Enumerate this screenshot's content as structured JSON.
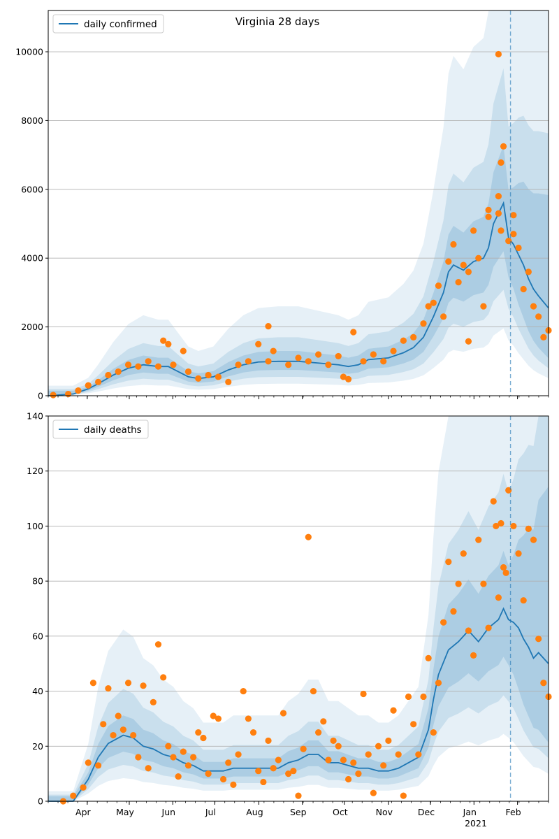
{
  "chart_data": [
    {
      "type": "line",
      "title": "Virginia 28 days",
      "legend": {
        "label": "daily confirmed",
        "placement": "upper-left"
      },
      "ylim": [
        0,
        11200
      ],
      "yticks": [
        0,
        2000,
        4000,
        6000,
        8000,
        10000
      ],
      "grid": "horizontal",
      "cutoff_x": 0.924,
      "x_month_labels": [
        "Apr",
        "May",
        "Jun",
        "Jul",
        "Aug",
        "Sep",
        "Oct",
        "Nov",
        "Dec",
        "Jan",
        "Feb"
      ],
      "x_year_label": "2021",
      "series": [
        {
          "name": "daily confirmed",
          "kind": "model",
          "points": [
            [
              0,
              0
            ],
            [
              0.05,
              50
            ],
            [
              0.08,
              200
            ],
            [
              0.1,
              350
            ],
            [
              0.13,
              600
            ],
            [
              0.16,
              800
            ],
            [
              0.19,
              900
            ],
            [
              0.22,
              850
            ],
            [
              0.24,
              850
            ],
            [
              0.26,
              700
            ],
            [
              0.28,
              550
            ],
            [
              0.3,
              500
            ],
            [
              0.33,
              550
            ],
            [
              0.36,
              750
            ],
            [
              0.39,
              900
            ],
            [
              0.42,
              980
            ],
            [
              0.46,
              1000
            ],
            [
              0.5,
              1000
            ],
            [
              0.54,
              950
            ],
            [
              0.58,
              900
            ],
            [
              0.6,
              850
            ],
            [
              0.62,
              900
            ],
            [
              0.64,
              1050
            ],
            [
              0.68,
              1100
            ],
            [
              0.71,
              1250
            ],
            [
              0.73,
              1400
            ],
            [
              0.75,
              1700
            ],
            [
              0.77,
              2300
            ],
            [
              0.79,
              3000
            ],
            [
              0.8,
              3600
            ],
            [
              0.81,
              3800
            ],
            [
              0.83,
              3650
            ],
            [
              0.85,
              3900
            ],
            [
              0.87,
              4000
            ],
            [
              0.88,
              4300
            ],
            [
              0.89,
              5000
            ],
            [
              0.9,
              5300
            ],
            [
              0.91,
              5600
            ],
            [
              0.92,
              4600
            ],
            [
              0.93,
              4400
            ],
            [
              0.94,
              4100
            ],
            [
              0.95,
              3800
            ],
            [
              0.96,
              3400
            ],
            [
              0.97,
              3100
            ],
            [
              0.98,
              2900
            ],
            [
              1.0,
              2550
            ]
          ]
        },
        {
          "name": "observed",
          "kind": "points",
          "points": [
            [
              0.01,
              20
            ],
            [
              0.04,
              50
            ],
            [
              0.06,
              150
            ],
            [
              0.08,
              300
            ],
            [
              0.1,
              400
            ],
            [
              0.12,
              600
            ],
            [
              0.14,
              700
            ],
            [
              0.16,
              900
            ],
            [
              0.18,
              850
            ],
            [
              0.2,
              1000
            ],
            [
              0.22,
              850
            ],
            [
              0.23,
              1600
            ],
            [
              0.24,
              1500
            ],
            [
              0.25,
              900
            ],
            [
              0.27,
              1300
            ],
            [
              0.28,
              700
            ],
            [
              0.3,
              500
            ],
            [
              0.32,
              600
            ],
            [
              0.34,
              550
            ],
            [
              0.36,
              400
            ],
            [
              0.38,
              900
            ],
            [
              0.4,
              1000
            ],
            [
              0.42,
              1500
            ],
            [
              0.44,
              1000
            ],
            [
              0.45,
              1300
            ],
            [
              0.44,
              2020
            ],
            [
              0.48,
              900
            ],
            [
              0.5,
              1100
            ],
            [
              0.52,
              1000
            ],
            [
              0.54,
              1200
            ],
            [
              0.56,
              900
            ],
            [
              0.58,
              1150
            ],
            [
              0.59,
              550
            ],
            [
              0.6,
              480
            ],
            [
              0.61,
              1850
            ],
            [
              0.63,
              1000
            ],
            [
              0.65,
              1200
            ],
            [
              0.67,
              1000
            ],
            [
              0.69,
              1300
            ],
            [
              0.71,
              1600
            ],
            [
              0.73,
              1700
            ],
            [
              0.75,
              2100
            ],
            [
              0.76,
              2600
            ],
            [
              0.77,
              2700
            ],
            [
              0.78,
              3200
            ],
            [
              0.79,
              2300
            ],
            [
              0.8,
              3900
            ],
            [
              0.81,
              4400
            ],
            [
              0.82,
              3300
            ],
            [
              0.83,
              3800
            ],
            [
              0.84,
              3600
            ],
            [
              0.85,
              4800
            ],
            [
              0.84,
              1580
            ],
            [
              0.86,
              4000
            ],
            [
              0.87,
              2600
            ],
            [
              0.88,
              5200
            ],
            [
              0.88,
              5400
            ],
            [
              0.9,
              5300
            ],
            [
              0.9,
              5800
            ],
            [
              0.905,
              4800
            ],
            [
              0.905,
              6780
            ],
            [
              0.91,
              7250
            ],
            [
              0.9,
              9930
            ],
            [
              0.92,
              4500
            ],
            [
              0.93,
              5250
            ],
            [
              0.93,
              4700
            ],
            [
              0.94,
              4300
            ],
            [
              0.95,
              3100
            ],
            [
              0.96,
              3600
            ],
            [
              0.97,
              2600
            ],
            [
              0.98,
              2300
            ],
            [
              0.99,
              1700
            ],
            [
              1.0,
              1900
            ]
          ]
        }
      ]
    },
    {
      "type": "line",
      "legend": {
        "label": "daily deaths",
        "placement": "upper-left"
      },
      "ylim": [
        0,
        140
      ],
      "yticks": [
        0,
        20,
        40,
        60,
        80,
        100,
        120,
        140
      ],
      "grid": "horizontal",
      "cutoff_x": 0.924,
      "x_month_labels": [
        "Apr",
        "May",
        "Jun",
        "Jul",
        "Aug",
        "Sep",
        "Oct",
        "Nov",
        "Dec",
        "Jan",
        "Feb"
      ],
      "x_year_label": "2021",
      "series": [
        {
          "name": "daily deaths",
          "kind": "model",
          "points": [
            [
              0,
              0
            ],
            [
              0.05,
              0
            ],
            [
              0.08,
              8
            ],
            [
              0.1,
              16
            ],
            [
              0.12,
              21
            ],
            [
              0.15,
              24
            ],
            [
              0.17,
              23
            ],
            [
              0.19,
              20
            ],
            [
              0.21,
              19
            ],
            [
              0.23,
              17
            ],
            [
              0.25,
              16
            ],
            [
              0.27,
              14
            ],
            [
              0.29,
              13
            ],
            [
              0.31,
              11
            ],
            [
              0.33,
              11
            ],
            [
              0.35,
              11
            ],
            [
              0.37,
              12
            ],
            [
              0.4,
              12
            ],
            [
              0.43,
              12
            ],
            [
              0.46,
              12
            ],
            [
              0.48,
              14
            ],
            [
              0.5,
              15
            ],
            [
              0.52,
              17
            ],
            [
              0.54,
              17
            ],
            [
              0.56,
              14
            ],
            [
              0.58,
              14
            ],
            [
              0.6,
              13
            ],
            [
              0.62,
              12
            ],
            [
              0.64,
              12
            ],
            [
              0.66,
              11
            ],
            [
              0.68,
              11
            ],
            [
              0.7,
              12
            ],
            [
              0.72,
              14
            ],
            [
              0.74,
              16
            ],
            [
              0.76,
              26
            ],
            [
              0.77,
              37
            ],
            [
              0.78,
              46
            ],
            [
              0.8,
              55
            ],
            [
              0.82,
              58
            ],
            [
              0.84,
              62
            ],
            [
              0.86,
              58
            ],
            [
              0.88,
              63
            ],
            [
              0.9,
              66
            ],
            [
              0.91,
              70
            ],
            [
              0.92,
              66
            ],
            [
              0.93,
              65
            ],
            [
              0.94,
              63
            ],
            [
              0.95,
              59
            ],
            [
              0.96,
              56
            ],
            [
              0.97,
              52
            ],
            [
              0.98,
              54
            ],
            [
              1.0,
              50
            ]
          ]
        },
        {
          "name": "observed",
          "kind": "points",
          "points": [
            [
              0.03,
              0
            ],
            [
              0.05,
              2
            ],
            [
              0.07,
              5
            ],
            [
              0.08,
              14
            ],
            [
              0.09,
              43
            ],
            [
              0.1,
              13
            ],
            [
              0.11,
              28
            ],
            [
              0.12,
              41
            ],
            [
              0.13,
              24
            ],
            [
              0.14,
              31
            ],
            [
              0.15,
              26
            ],
            [
              0.16,
              43
            ],
            [
              0.17,
              24
            ],
            [
              0.18,
              16
            ],
            [
              0.19,
              42
            ],
            [
              0.2,
              12
            ],
            [
              0.21,
              36
            ],
            [
              0.22,
              57
            ],
            [
              0.23,
              45
            ],
            [
              0.24,
              20
            ],
            [
              0.25,
              16
            ],
            [
              0.26,
              9
            ],
            [
              0.27,
              18
            ],
            [
              0.28,
              13
            ],
            [
              0.29,
              16
            ],
            [
              0.3,
              25
            ],
            [
              0.31,
              23
            ],
            [
              0.32,
              10
            ],
            [
              0.33,
              31
            ],
            [
              0.34,
              30
            ],
            [
              0.35,
              8
            ],
            [
              0.36,
              14
            ],
            [
              0.37,
              6
            ],
            [
              0.38,
              17
            ],
            [
              0.39,
              40
            ],
            [
              0.4,
              30
            ],
            [
              0.41,
              25
            ],
            [
              0.42,
              11
            ],
            [
              0.43,
              7
            ],
            [
              0.44,
              22
            ],
            [
              0.45,
              12
            ],
            [
              0.46,
              15
            ],
            [
              0.47,
              32
            ],
            [
              0.48,
              10
            ],
            [
              0.49,
              11
            ],
            [
              0.5,
              2
            ],
            [
              0.51,
              19
            ],
            [
              0.52,
              96
            ],
            [
              0.53,
              40
            ],
            [
              0.54,
              25
            ],
            [
              0.55,
              29
            ],
            [
              0.56,
              15
            ],
            [
              0.57,
              22
            ],
            [
              0.58,
              20
            ],
            [
              0.59,
              15
            ],
            [
              0.6,
              8
            ],
            [
              0.61,
              14
            ],
            [
              0.62,
              10
            ],
            [
              0.63,
              39
            ],
            [
              0.64,
              17
            ],
            [
              0.65,
              3
            ],
            [
              0.66,
              20
            ],
            [
              0.67,
              13
            ],
            [
              0.68,
              22
            ],
            [
              0.69,
              33
            ],
            [
              0.7,
              17
            ],
            [
              0.71,
              2
            ],
            [
              0.72,
              38
            ],
            [
              0.73,
              28
            ],
            [
              0.74,
              17
            ],
            [
              0.75,
              38
            ],
            [
              0.76,
              52
            ],
            [
              0.77,
              25
            ],
            [
              0.78,
              43
            ],
            [
              0.79,
              65
            ],
            [
              0.8,
              87
            ],
            [
              0.81,
              69
            ],
            [
              0.82,
              79
            ],
            [
              0.83,
              90
            ],
            [
              0.84,
              62
            ],
            [
              0.85,
              53
            ],
            [
              0.86,
              95
            ],
            [
              0.87,
              79
            ],
            [
              0.88,
              63
            ],
            [
              0.89,
              109
            ],
            [
              0.895,
              100
            ],
            [
              0.9,
              74
            ],
            [
              0.905,
              101
            ],
            [
              0.91,
              85
            ],
            [
              0.915,
              83
            ],
            [
              0.92,
              113
            ],
            [
              0.93,
              100
            ],
            [
              0.94,
              90
            ],
            [
              0.95,
              73
            ],
            [
              0.96,
              99
            ],
            [
              0.97,
              95
            ],
            [
              0.98,
              59
            ],
            [
              0.99,
              43
            ],
            [
              1.0,
              38
            ]
          ]
        }
      ]
    }
  ],
  "colors": {
    "model_line": "#1f77b4",
    "points": "#ff7f0e",
    "band": "#1f77b4",
    "grid": "#b0b0b0",
    "cutoff": "#1f77b4"
  }
}
